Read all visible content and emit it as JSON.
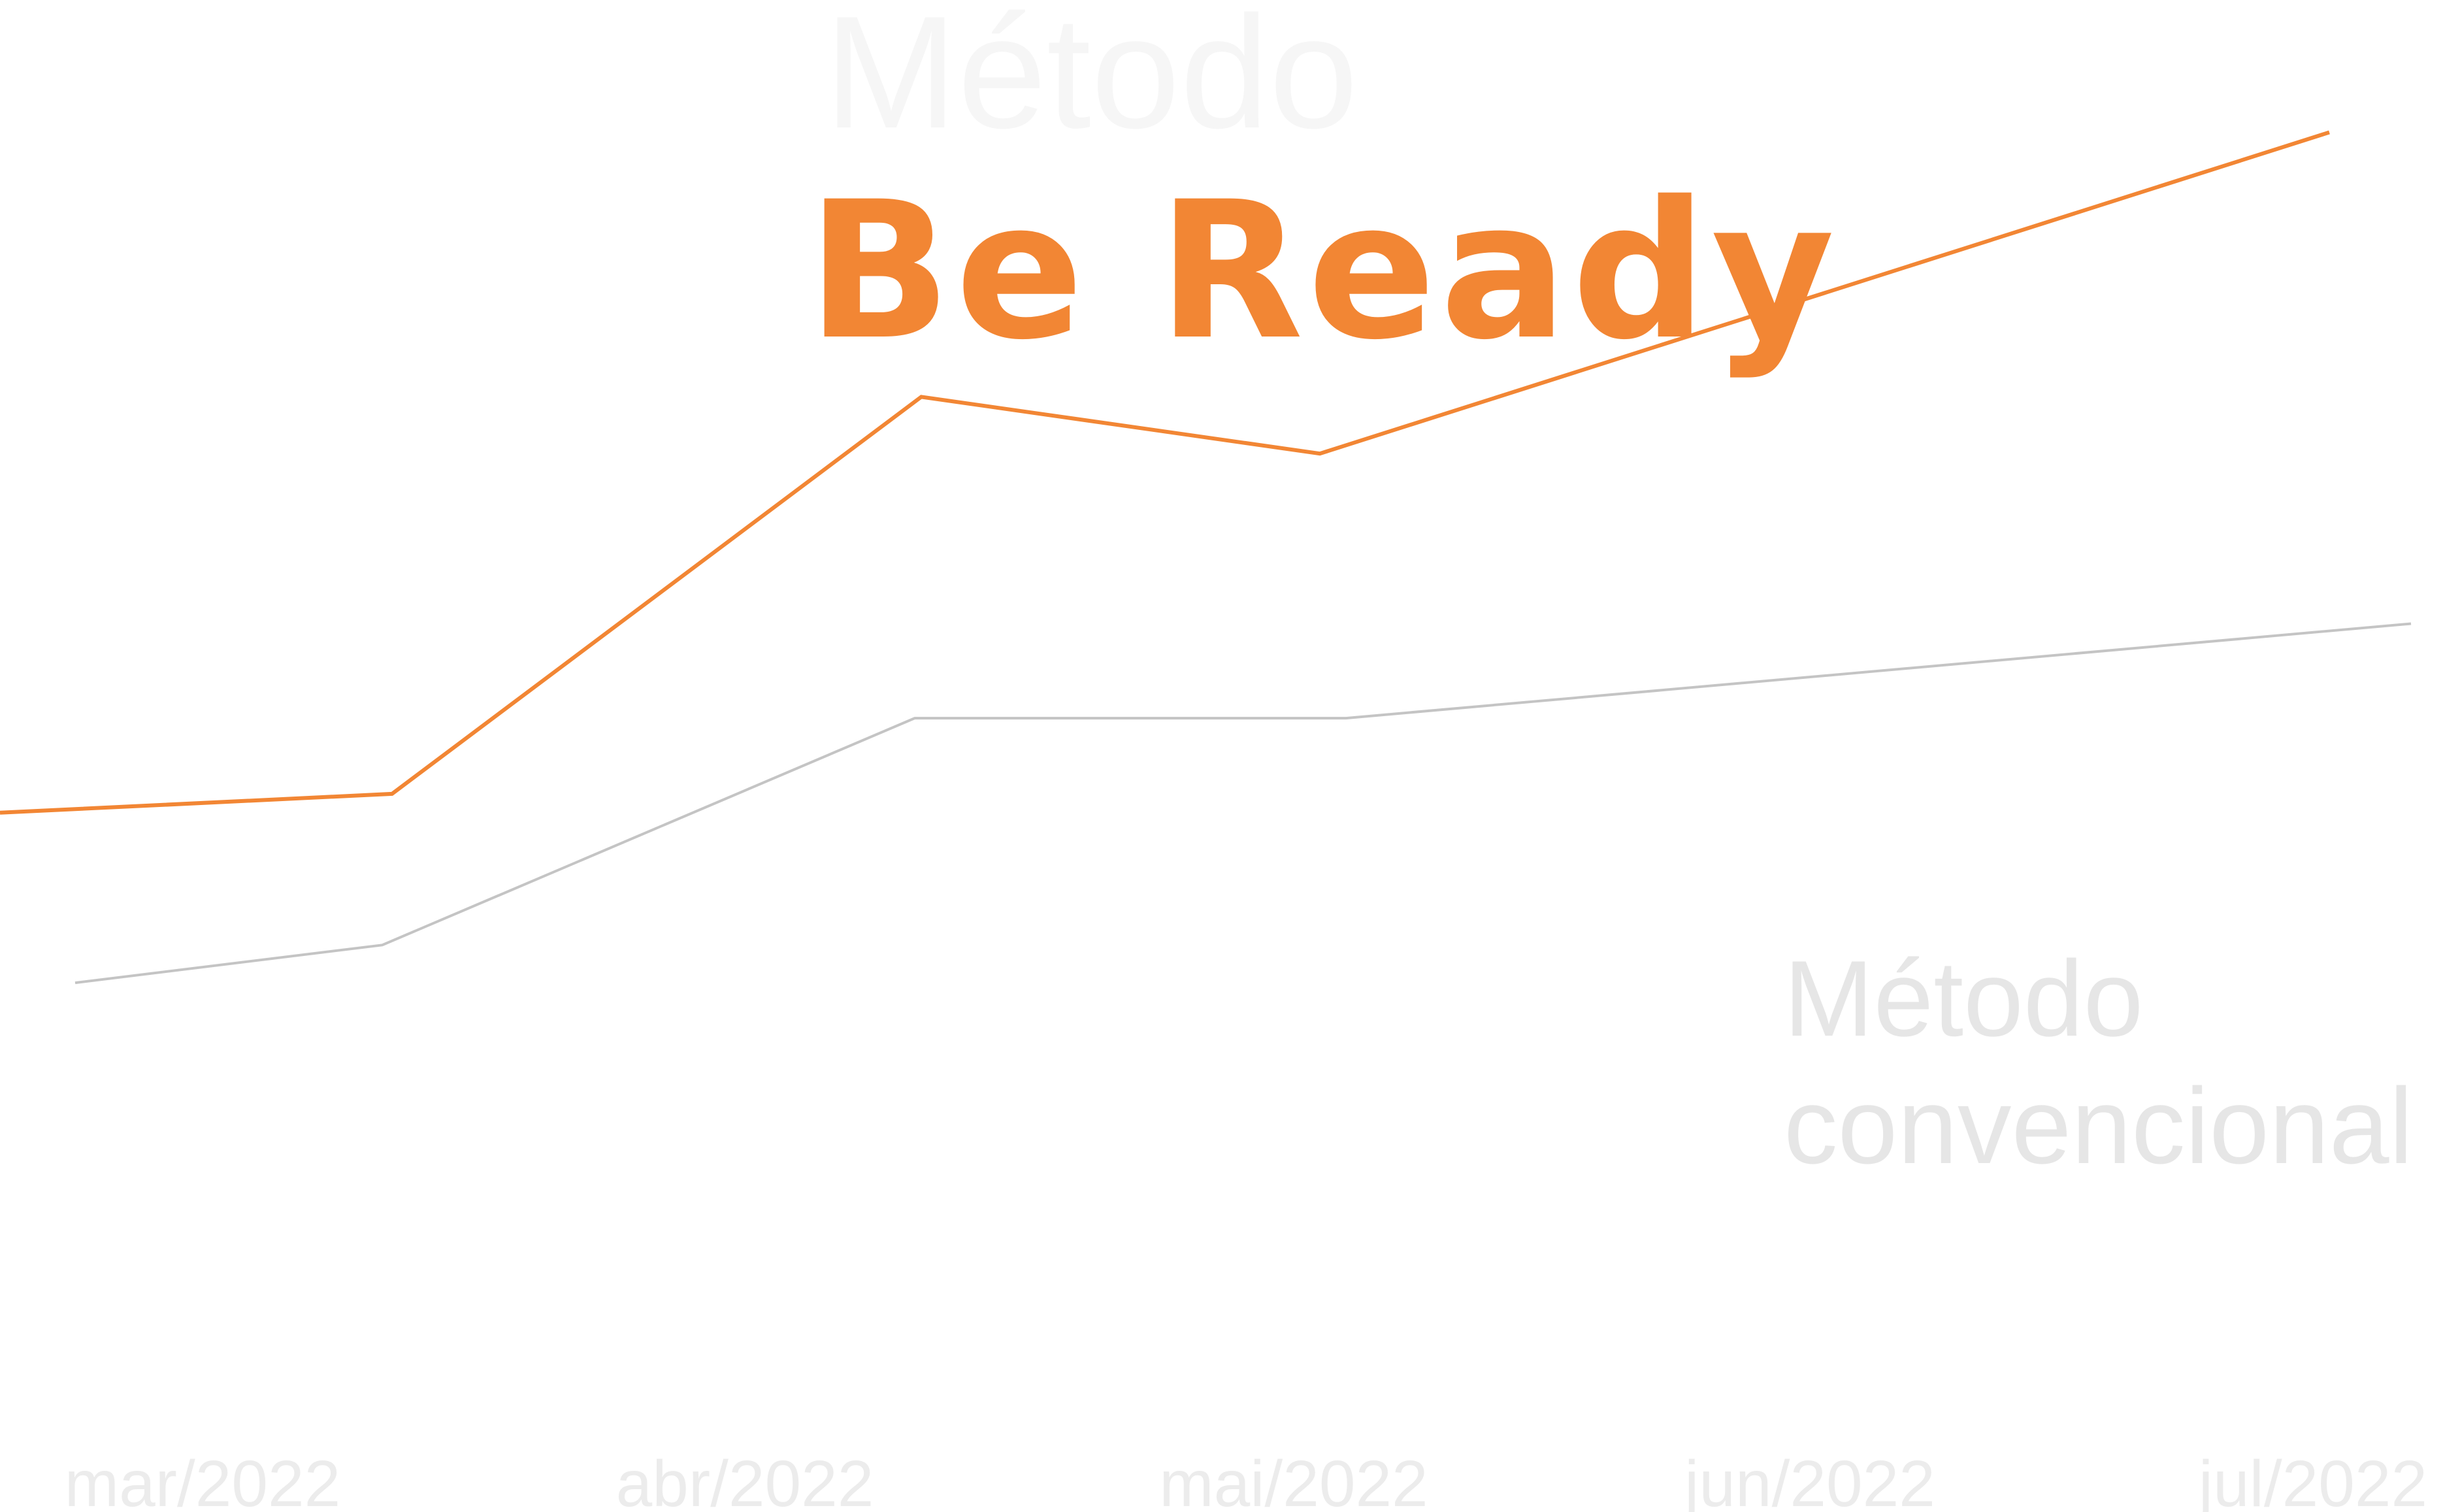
{
  "chart_data": {
    "type": "line",
    "categories": [
      "mar/2022",
      "abr/2022",
      "mai/2022",
      "jun/2022",
      "jul/2022"
    ],
    "series": [
      {
        "name_line1": "Método",
        "name_line2": "Be Ready",
        "color": "#f28634",
        "values": [
          37,
          38,
          59,
          56,
          73
        ]
      },
      {
        "name_line1": "Método",
        "name_line2": "convencional",
        "color": "#c4c4c4",
        "values": [
          28,
          30,
          42,
          42,
          47
        ]
      }
    ],
    "ylim": [
      0,
      80
    ],
    "grid": false,
    "legend": "inline labels"
  }
}
